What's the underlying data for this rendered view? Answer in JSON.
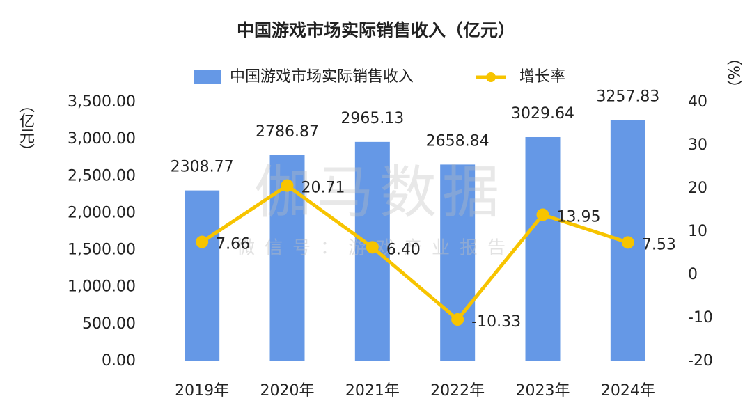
{
  "chart_data": {
    "type": "bar-line",
    "title": "中国游戏市场实际销售收入（亿元）",
    "y_label": "（亿元）",
    "y2_label": "（%）",
    "watermark": "伽马数据",
    "watermark_sub": "微信号：游戏产业报告",
    "categories": [
      "2019年",
      "2020年",
      "2021年",
      "2022年",
      "2023年",
      "2024年"
    ],
    "series": [
      {
        "name": "中国游戏市场实际销售收入",
        "type": "bar",
        "color": "#6598e6",
        "values": [
          2308.77,
          2786.87,
          2965.13,
          2658.84,
          3029.64,
          3257.83
        ]
      },
      {
        "name": "增长率",
        "type": "line",
        "color": "#f7c400",
        "axis": "y2",
        "values": [
          7.66,
          20.71,
          6.4,
          -10.33,
          13.95,
          7.53
        ],
        "value_labels": [
          "7.66",
          "20.71",
          "6.40",
          "-10.33",
          "13.95",
          "7.53"
        ]
      }
    ],
    "ylim": [
      0,
      3500
    ],
    "yticks": [
      {
        "value": 0,
        "label": "0.00"
      },
      {
        "value": 500,
        "label": "500.00"
      },
      {
        "value": 1000,
        "label": "1,000.00"
      },
      {
        "value": 1500,
        "label": "1,500.00"
      },
      {
        "value": 2000,
        "label": "2,000.00"
      },
      {
        "value": 2500,
        "label": "2,500.00"
      },
      {
        "value": 3000,
        "label": "3,000.00"
      },
      {
        "value": 3500,
        "label": "3,500.00"
      }
    ],
    "y2lim": [
      -20,
      40
    ],
    "y2ticks": [
      -20,
      -10,
      0,
      10,
      20,
      30,
      40
    ],
    "legend": "top"
  }
}
